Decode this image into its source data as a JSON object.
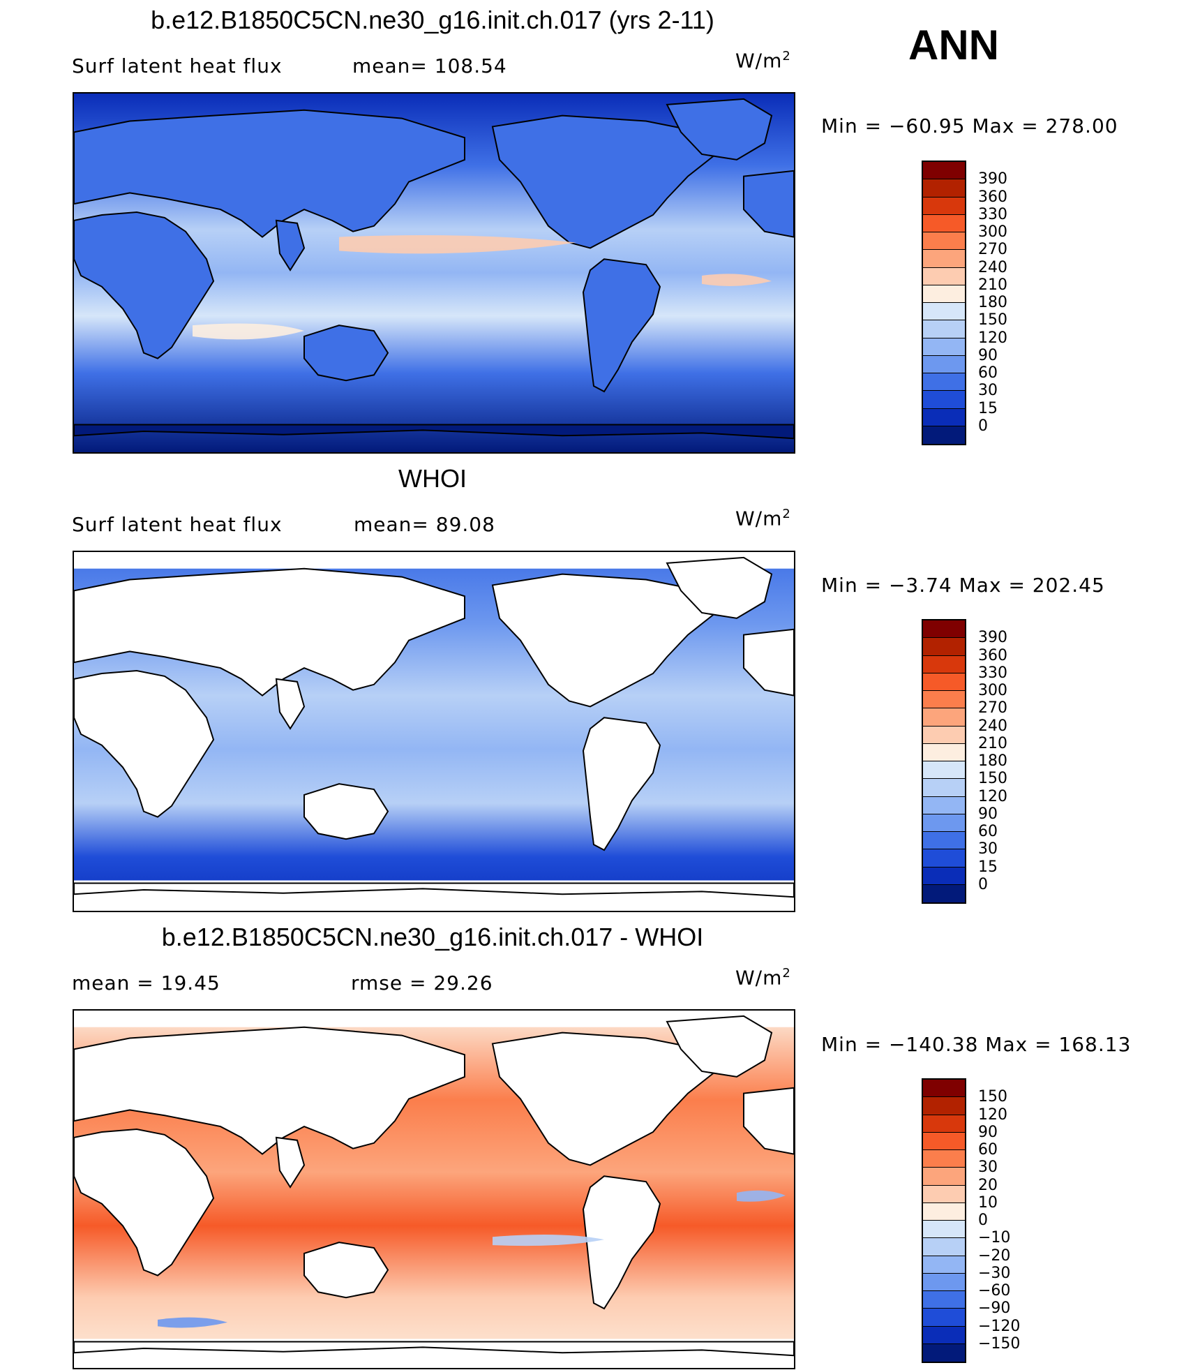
{
  "season": "ANN",
  "panels": [
    {
      "title": "b.e12.B1850C5CN.ne30_g16.init.ch.017 (yrs 2-11)",
      "left_label": "Surf latent heat flux",
      "mid_label": "mean=  108.54",
      "units": "W/m",
      "units_sup": "2",
      "minmax": "Min  =  −60.95  Max  =  278.00",
      "levels": [
        "390",
        "360",
        "330",
        "300",
        "270",
        "240",
        "210",
        "180",
        "150",
        "120",
        "90",
        "60",
        "30",
        "15",
        "0"
      ],
      "colors": [
        "#7f0000",
        "#b22200",
        "#d8380c",
        "#f65a28",
        "#fb7e4c",
        "#fca57c",
        "#fdccb1",
        "#fdeee0",
        "#d6e6f9",
        "#b7d0f6",
        "#93b6f4",
        "#6d98ef",
        "#3f70e6",
        "#1f4dd8",
        "#0a2db8",
        "#021a7a"
      ],
      "kind": "model"
    },
    {
      "title": "WHOI",
      "left_label": "Surf latent heat flux",
      "mid_label": "mean=   89.08",
      "units": "W/m",
      "units_sup": "2",
      "minmax": "Min  =    −3.74  Max  =  202.45",
      "levels": [
        "390",
        "360",
        "330",
        "300",
        "270",
        "240",
        "210",
        "180",
        "150",
        "120",
        "90",
        "60",
        "30",
        "15",
        "0"
      ],
      "colors": [
        "#7f0000",
        "#b22200",
        "#d8380c",
        "#f65a28",
        "#fb7e4c",
        "#fca57c",
        "#fdccb1",
        "#fdeee0",
        "#d6e6f9",
        "#b7d0f6",
        "#93b6f4",
        "#6d98ef",
        "#3f70e6",
        "#1f4dd8",
        "#0a2db8",
        "#021a7a"
      ],
      "kind": "obs"
    },
    {
      "title": "b.e12.B1850C5CN.ne30_g16.init.ch.017 - WHOI",
      "left_label": "mean  =    19.45",
      "mid_label": "rmse  =    29.26",
      "units": "W/m",
      "units_sup": "2",
      "minmax": "Min  =  −140.38  Max  =  168.13",
      "levels": [
        "150",
        "120",
        "90",
        "60",
        "30",
        "20",
        "10",
        "0",
        "−10",
        "−20",
        "−30",
        "−60",
        "−90",
        "−120",
        "−150"
      ],
      "colors": [
        "#7f0000",
        "#b22200",
        "#d8380c",
        "#f65a28",
        "#fb7e4c",
        "#fca57c",
        "#fdccb1",
        "#fdeee0",
        "#d6e6f9",
        "#b7d0f6",
        "#93b6f4",
        "#6d98ef",
        "#3f70e6",
        "#1f4dd8",
        "#0a2db8",
        "#021a7a"
      ],
      "kind": "diff"
    }
  ]
}
